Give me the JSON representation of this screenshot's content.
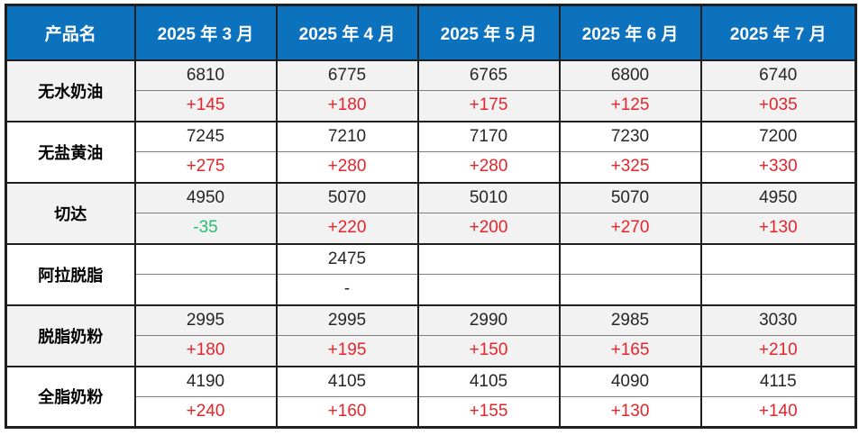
{
  "table": {
    "colors": {
      "header_bg": "#0D72BE",
      "header_text": "#FFFFFF",
      "shaded_row_bg": "#F2F2F2",
      "plain_row_bg": "#FFFFFF",
      "positive_change": "#E5242C",
      "negative_change": "#27BE73",
      "number_text": "#262626",
      "border_dark": "#1F1F1F",
      "border_light": "#7F7F7F"
    },
    "header": {
      "product_column": "产品名",
      "months": [
        "2025 年 3 月",
        "2025 年 4 月",
        "2025 年 5 月",
        "2025 年 6 月",
        "2025 年 7 月"
      ]
    },
    "products": [
      {
        "name": "无水奶油",
        "shaded": true,
        "prices": [
          "6810",
          "6775",
          "6765",
          "6800",
          "6740"
        ],
        "changes": [
          "+145",
          "+180",
          "+175",
          "+125",
          "+035"
        ],
        "change_types": [
          "up",
          "up",
          "up",
          "up",
          "up"
        ]
      },
      {
        "name": "无盐黄油",
        "shaded": false,
        "prices": [
          "7245",
          "7210",
          "7170",
          "7230",
          "7200"
        ],
        "changes": [
          "+275",
          "+280",
          "+280",
          "+325",
          "+330"
        ],
        "change_types": [
          "up",
          "up",
          "up",
          "up",
          "up"
        ]
      },
      {
        "name": "切达",
        "shaded": true,
        "prices": [
          "4950",
          "5070",
          "5010",
          "5070",
          "4950"
        ],
        "changes": [
          "-35",
          "+220",
          "+200",
          "+270",
          "+130"
        ],
        "change_types": [
          "down",
          "up",
          "up",
          "up",
          "up"
        ]
      },
      {
        "name": "阿拉脱脂",
        "shaded": false,
        "prices": [
          "",
          "2475",
          "",
          "",
          ""
        ],
        "changes": [
          "",
          "-",
          "",
          "",
          ""
        ],
        "change_types": [
          "",
          "neutral",
          "",
          "",
          ""
        ]
      },
      {
        "name": "脱脂奶粉",
        "shaded": true,
        "prices": [
          "2995",
          "2995",
          "2990",
          "2985",
          "3030"
        ],
        "changes": [
          "+180",
          "+195",
          "+150",
          "+165",
          "+210"
        ],
        "change_types": [
          "up",
          "up",
          "up",
          "up",
          "up"
        ]
      },
      {
        "name": "全脂奶粉",
        "shaded": false,
        "prices": [
          "4190",
          "4105",
          "4105",
          "4090",
          "4115"
        ],
        "changes": [
          "+240",
          "+160",
          "+155",
          "+130",
          "+140"
        ],
        "change_types": [
          "up",
          "up",
          "up",
          "up",
          "up"
        ]
      }
    ]
  }
}
